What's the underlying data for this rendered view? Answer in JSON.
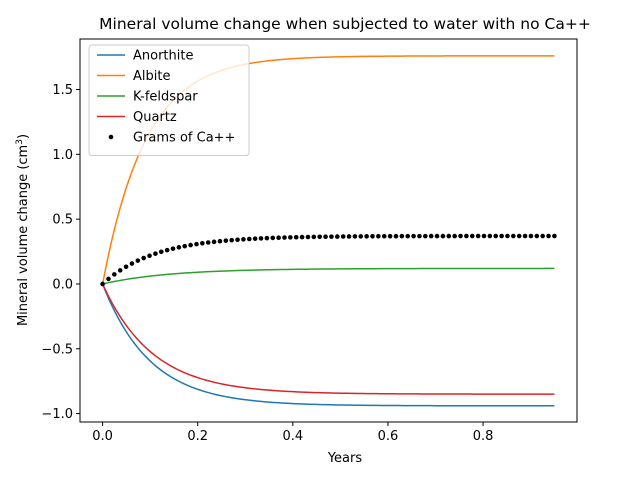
{
  "chart_data": {
    "type": "line",
    "title": "Mineral volume change when subjected to water with no Ca++",
    "xlabel": "Years",
    "ylabel": "Mineral volume change (cm",
    "ylabel_sup": "3",
    "ylabel_close": ")",
    "xlim": [
      -0.0475,
      0.9975
    ],
    "ylim": [
      -1.065,
      1.89
    ],
    "x_ticks": [
      0.0,
      0.2,
      0.4,
      0.6,
      0.8
    ],
    "x_tick_labels": [
      "0.0",
      "0.2",
      "0.4",
      "0.6",
      "0.8"
    ],
    "y_ticks": [
      -1.0,
      -0.5,
      0.0,
      0.5,
      1.0,
      1.5
    ],
    "y_tick_labels": [
      "−1.0",
      "−0.5",
      "0.0",
      "0.5",
      "1.0",
      "1.5"
    ],
    "grid": false,
    "legend_position": "top-left",
    "x_max": 0.95,
    "series": [
      {
        "name": "Anorthite",
        "color": "#1f77b4",
        "style": "line",
        "final": -0.94,
        "rate": 10
      },
      {
        "name": "Albite",
        "color": "#ff7f0e",
        "style": "line",
        "final": 1.76,
        "rate": 11
      },
      {
        "name": "K-feldspar",
        "color": "#2ca02c",
        "style": "line",
        "final": 0.12,
        "rate": 7
      },
      {
        "name": "Quartz",
        "color": "#d62728",
        "style": "line",
        "final": -0.85,
        "rate": 9.5
      },
      {
        "name": "Grams of Ca++",
        "color": "#000000",
        "style": "dots",
        "final": 0.37,
        "rate": 9,
        "n_points": 78
      }
    ]
  }
}
